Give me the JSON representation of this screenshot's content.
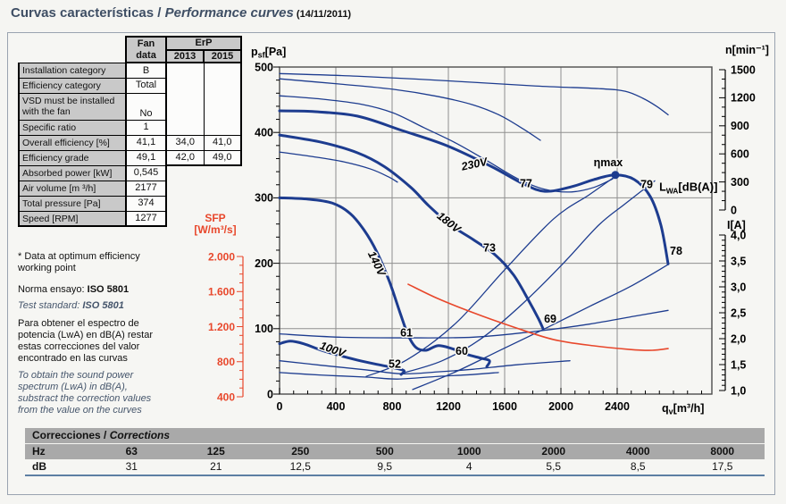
{
  "colors": {
    "curve_blue": "#1d3c8f",
    "sfp_red": "#e8472b",
    "grid": "#8f8f8f",
    "box": "#4d4d4d",
    "halo": "#f6f6f3"
  },
  "title": {
    "es": "Curvas características / ",
    "en": "Performance curves",
    "date": " (14/11/2011)"
  },
  "fan_table": {
    "header": {
      "col1_line1": "Fan",
      "col1_line2": "data",
      "group": "ErP",
      "y2013": "2013",
      "y2015": "2015"
    },
    "rows": [
      {
        "label": "Installation category",
        "value": "B"
      },
      {
        "label": "Efficiency category",
        "value": "Total"
      },
      {
        "label": "VSD must be installed with the fan",
        "value": "No",
        "tall": true
      },
      {
        "label": "Specific ratio",
        "value": "1"
      },
      {
        "label": "Overall efficiency [%]",
        "value": "41,1",
        "erp2013": "34,0",
        "erp2015": "41,0"
      },
      {
        "label": "Efficiency grade",
        "value": "49,1",
        "erp2013": "42,0",
        "erp2015": "49,0"
      },
      {
        "label": "Absorbed power [kW]",
        "value": "0,545",
        "after": true
      },
      {
        "label": "Air volume [m ³/h]",
        "value": "2177",
        "after": true
      },
      {
        "label": "Total pressure [Pa]",
        "value": "374",
        "after": true
      },
      {
        "label": "Speed [RPM]",
        "value": "1277",
        "after": true
      }
    ]
  },
  "notes": {
    "footnote": "* Data at optimum efficiency\nworking point",
    "norma_prefix": "Norma ensayo: ",
    "norma_bold": "ISO 5801",
    "test_prefix": "Test standard: ",
    "test_bold": "ISO 5801",
    "para_es": "Para obtener el espectro de\npotencia (LwA) en dB(A) restar\nestas correcciones del valor\nencontrado en las curvas",
    "para_en": "To obtain the sound power\nspectrum (LwA) in dB(A),\nsubstract the correction values\nfrom the value on the curves"
  },
  "corrections": {
    "title_es": "Correcciones / ",
    "title_en": "Corrections",
    "row1_label": "Hz",
    "row2_label": "dB",
    "hz": [
      "63",
      "125",
      "250",
      "500",
      "1000",
      "2000",
      "4000",
      "8000"
    ],
    "db": [
      "31",
      "21",
      "12,5",
      "9,5",
      "4",
      "5,5",
      "8,5",
      "17,5"
    ]
  },
  "chart_data": {
    "type": "line",
    "x_axis": {
      "label_parts": [
        "q",
        "v",
        "[m³/h]"
      ],
      "ticks": [
        0,
        400,
        800,
        1200,
        1600,
        2000,
        2400
      ],
      "minor_step": 100,
      "range": [
        0,
        3073
      ]
    },
    "y_axis_pressure": {
      "label_parts": [
        "p",
        "sf",
        "[Pa]"
      ],
      "ticks": [
        0,
        100,
        200,
        300,
        400,
        500
      ],
      "minor_step": 20,
      "range": [
        0,
        500
      ]
    },
    "y_axis_speed": {
      "label": "n[min⁻¹]",
      "ticks": [
        0,
        300,
        600,
        900,
        1200,
        1500
      ],
      "minor_step": 100,
      "range": [
        0,
        1500
      ]
    },
    "y_axis_current": {
      "label": "I[A]",
      "tick_labels": [
        "1,0",
        "1,5",
        "2,0",
        "2,5",
        "3,0",
        "3,5",
        "4,0"
      ],
      "tick_values": [
        1,
        1.5,
        2,
        2.5,
        3,
        3.5,
        4
      ],
      "minor_step": 0.1,
      "range": [
        1,
        4
      ]
    },
    "y_axis_sfp": {
      "label_top": "SFP",
      "label_unit": "[W/m³/s]",
      "tick_labels": [
        "400",
        "800",
        "1.200",
        "1.600",
        "2.000"
      ],
      "tick_values": [
        400,
        800,
        1200,
        1600,
        2000
      ],
      "minor_step": 100,
      "range": [
        400,
        2000
      ]
    },
    "series": [
      {
        "name": "pressure curve 230V",
        "axis": "p",
        "style": "thick",
        "points": [
          [
            0,
            433
          ],
          [
            235,
            432
          ],
          [
            552,
            425
          ],
          [
            870,
            403
          ],
          [
            1187,
            380
          ],
          [
            1505,
            348
          ],
          [
            1727,
            322
          ],
          [
            1886,
            310
          ],
          [
            2076,
            317
          ],
          [
            2235,
            328
          ],
          [
            2387,
            335
          ],
          [
            2521,
            328
          ],
          [
            2635,
            302
          ],
          [
            2711,
            258
          ],
          [
            2762,
            199
          ]
        ]
      },
      {
        "name": "pressure curve 180V",
        "axis": "p",
        "style": "thick",
        "points": [
          [
            0,
            396
          ],
          [
            298,
            385
          ],
          [
            552,
            369
          ],
          [
            743,
            348
          ],
          [
            933,
            316
          ],
          [
            1060,
            288
          ],
          [
            1219,
            258
          ],
          [
            1378,
            236
          ],
          [
            1537,
            212
          ],
          [
            1664,
            182
          ],
          [
            1771,
            143
          ],
          [
            1841,
            115
          ],
          [
            1873,
            100
          ]
        ]
      },
      {
        "name": "pressure curve 140V",
        "axis": "p",
        "style": "thick",
        "points": [
          [
            0,
            300
          ],
          [
            203,
            298
          ],
          [
            375,
            292
          ],
          [
            502,
            276
          ],
          [
            603,
            250
          ],
          [
            692,
            217
          ],
          [
            781,
            172
          ],
          [
            857,
            124
          ],
          [
            914,
            90
          ],
          [
            971,
            71
          ],
          [
            1041,
            67
          ],
          [
            1124,
            74
          ],
          [
            1219,
            70
          ],
          [
            1327,
            61
          ],
          [
            1429,
            55
          ],
          [
            1492,
            51
          ],
          [
            1473,
            42
          ]
        ]
      },
      {
        "name": "pressure curve 100V",
        "axis": "p",
        "style": "thick",
        "points": [
          [
            0,
            77
          ],
          [
            76,
            81
          ],
          [
            171,
            77
          ],
          [
            298,
            67
          ],
          [
            425,
            59
          ],
          [
            552,
            52
          ],
          [
            679,
            46
          ],
          [
            794,
            41
          ],
          [
            883,
            36
          ],
          [
            864,
            30
          ]
        ]
      },
      {
        "name": "speed curve 230V",
        "axis": "p",
        "style": "thin",
        "points": [
          [
            0,
            490
          ],
          [
            552,
            486
          ],
          [
            1187,
            479
          ],
          [
            1822,
            471
          ],
          [
            2267,
            467
          ],
          [
            2457,
            463
          ],
          [
            2584,
            452
          ],
          [
            2680,
            440
          ],
          [
            2762,
            427
          ]
        ]
      },
      {
        "name": "speed curve 180V",
        "axis": "p",
        "style": "thin",
        "points": [
          [
            0,
            482
          ],
          [
            425,
            474
          ],
          [
            806,
            466
          ],
          [
            1124,
            455
          ],
          [
            1378,
            442
          ],
          [
            1568,
            426
          ],
          [
            1727,
            406
          ],
          [
            1854,
            388
          ]
        ]
      },
      {
        "name": "speed curve loaded 230V",
        "axis": "p",
        "style": "thin",
        "points": [
          [
            0,
            456
          ],
          [
            298,
            451
          ],
          [
            584,
            443
          ],
          [
            806,
            430
          ],
          [
            1029,
            407
          ],
          [
            1251,
            384
          ],
          [
            1473,
            357
          ],
          [
            1695,
            329
          ],
          [
            1886,
            313
          ],
          [
            2076,
            309
          ],
          [
            2235,
            316
          ],
          [
            2368,
            329
          ]
        ]
      },
      {
        "name": "speed curve 140V",
        "axis": "p",
        "style": "thin",
        "points": [
          [
            0,
            370
          ],
          [
            235,
            363
          ],
          [
            457,
            355
          ],
          [
            648,
            344
          ],
          [
            775,
            332
          ],
          [
            838,
            324
          ]
        ]
      },
      {
        "name": "current curve 230V",
        "axis": "p",
        "style": "thin",
        "points": [
          [
            0,
            92
          ],
          [
            425,
            87
          ],
          [
            870,
            86
          ],
          [
            1378,
            87
          ],
          [
            1822,
            96
          ],
          [
            2203,
            107
          ],
          [
            2521,
            119
          ],
          [
            2762,
            128
          ]
        ]
      },
      {
        "name": "current curve 180V",
        "axis": "p",
        "style": "thin",
        "points": [
          [
            0,
            51
          ],
          [
            298,
            44
          ],
          [
            616,
            37
          ],
          [
            870,
            31
          ],
          [
            1124,
            34
          ],
          [
            1378,
            38
          ],
          [
            1695,
            45
          ],
          [
            2064,
            51
          ]
        ]
      },
      {
        "name": "current curve 140V",
        "axis": "p",
        "style": "thin",
        "points": [
          [
            0,
            33
          ],
          [
            298,
            29
          ],
          [
            616,
            26
          ],
          [
            838,
            23
          ],
          [
            1124,
            27
          ],
          [
            1378,
            30
          ],
          [
            1556,
            33
          ]
        ]
      },
      {
        "name": "eta-max locus line",
        "axis": "p",
        "style": "thin",
        "points": [
          [
            616,
            27
          ],
          [
            902,
            52
          ],
          [
            1251,
            108
          ],
          [
            1600,
            190
          ],
          [
            1949,
            268
          ],
          [
            2203,
            305
          ],
          [
            2387,
            333
          ]
        ]
      },
      {
        "name": "locus line 2",
        "axis": "p",
        "style": "thin",
        "points": [
          [
            857,
            31
          ],
          [
            1156,
            51
          ],
          [
            1441,
            86
          ],
          [
            1727,
            138
          ],
          [
            2013,
            199
          ],
          [
            2267,
            258
          ],
          [
            2457,
            291
          ],
          [
            2667,
            326
          ]
        ]
      },
      {
        "name": "curve end locus line",
        "axis": "p",
        "style": "thin",
        "points": [
          [
            946,
            7
          ],
          [
            1251,
            34
          ],
          [
            1568,
            67
          ],
          [
            1886,
            100
          ],
          [
            2203,
            134
          ],
          [
            2489,
            164
          ],
          [
            2762,
            198
          ]
        ]
      },
      {
        "name": "SFP curve",
        "axis": "sfp",
        "style": "red",
        "points": [
          [
            914,
            1684
          ],
          [
            1124,
            1521
          ],
          [
            1378,
            1358
          ],
          [
            1664,
            1195
          ],
          [
            1949,
            1052
          ],
          [
            2235,
            981
          ],
          [
            2489,
            940
          ],
          [
            2648,
            930
          ],
          [
            2762,
            950
          ]
        ]
      }
    ],
    "eta_max": {
      "label": "ηmax",
      "dot_q": 2387,
      "dot_p": 335,
      "label_q": 2336,
      "label_p": 354
    },
    "lwa_label_parts": [
      "L",
      "WA",
      "[dB(A)]"
    ],
    "lwa_label_pos": {
      "q": 2699,
      "p": 316
    },
    "point_labels": [
      {
        "text": "77",
        "q": 1752,
        "p": 322
      },
      {
        "text": "79",
        "q": 2610,
        "p": 321
      },
      {
        "text": "78",
        "q": 2819,
        "p": 219
      },
      {
        "text": "73",
        "q": 1492,
        "p": 224
      },
      {
        "text": "69",
        "q": 1924,
        "p": 115
      },
      {
        "text": "61",
        "q": 902,
        "p": 94
      },
      {
        "text": "60",
        "q": 1295,
        "p": 66
      },
      {
        "text": "52",
        "q": 819,
        "p": 46
      }
    ],
    "voltage_labels": [
      {
        "text": "230V",
        "q": 1390,
        "p": 346,
        "rot": -12
      },
      {
        "text": "180V",
        "q": 1187,
        "p": 258,
        "rot": 38
      },
      {
        "text": "140V",
        "q": 667,
        "p": 197,
        "rot": 64
      },
      {
        "text": "100V",
        "q": 368,
        "p": 63,
        "rot": 20
      }
    ]
  }
}
